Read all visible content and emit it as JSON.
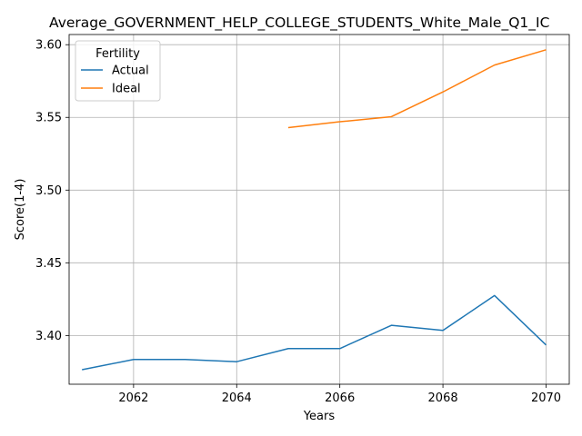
{
  "chart_data": {
    "type": "line",
    "title": "Average_GOVERNMENT_HELP_COLLEGE_STUDENTS_White_Male_Q1_IC",
    "xlabel": "Years",
    "ylabel": "Score(1-4)",
    "xlim": [
      2060.75,
      2070.45
    ],
    "ylim": [
      3.3665,
      3.607
    ],
    "xticks": [
      2062,
      2064,
      2066,
      2068,
      2070
    ],
    "yticks": [
      3.4,
      3.45,
      3.5,
      3.55,
      3.6
    ],
    "ytick_labels": [
      "3.40",
      "3.45",
      "3.50",
      "3.55",
      "3.60"
    ],
    "grid": true,
    "legend": {
      "title": "Fertility",
      "placement": "upper-left"
    },
    "series": [
      {
        "name": "Actual",
        "color": "#1f77b4",
        "x": [
          2061,
          2062,
          2063,
          2064,
          2065,
          2066,
          2067,
          2068,
          2069,
          2070
        ],
        "y": [
          3.3765,
          3.3835,
          3.3835,
          3.382,
          3.391,
          3.391,
          3.407,
          3.4035,
          3.4275,
          3.3935
        ]
      },
      {
        "name": "Ideal",
        "color": "#ff7f0e",
        "x": [
          2065,
          2066,
          2067,
          2068,
          2069,
          2070
        ],
        "y": [
          3.543,
          3.547,
          3.5505,
          3.5675,
          3.586,
          3.5965
        ]
      }
    ]
  }
}
